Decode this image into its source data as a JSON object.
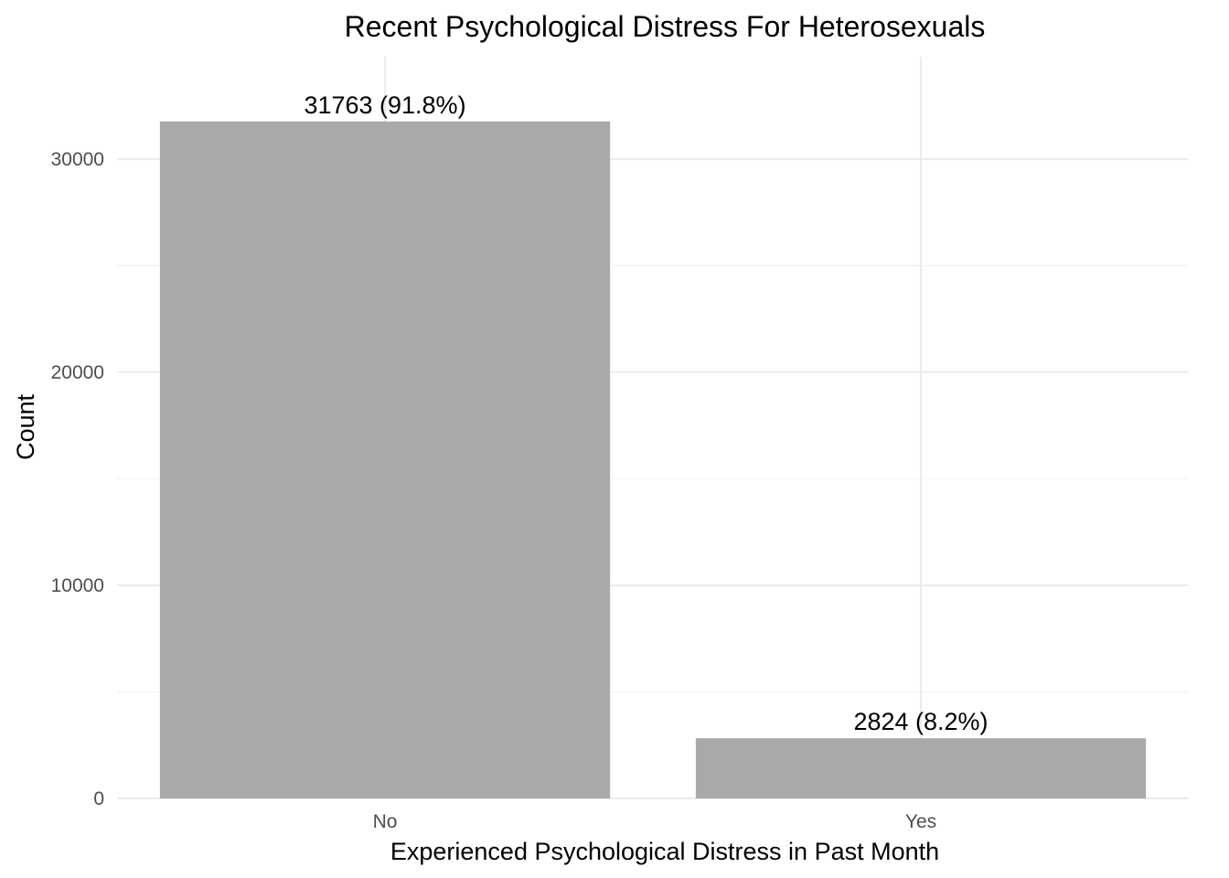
{
  "chart_data": {
    "type": "bar",
    "title": "Recent Psychological Distress For Heterosexuals",
    "xlabel": "Experienced Psychological Distress in Past Month",
    "ylabel": "Count",
    "categories": [
      "No",
      "Yes"
    ],
    "values": [
      31763,
      2824
    ],
    "data_labels": [
      "31763 (91.8%)",
      "2824 (8.2%)"
    ],
    "ylim": [
      0,
      34800
    ],
    "yticks": [
      0,
      10000,
      20000,
      30000
    ],
    "ytick_labels": [
      "0",
      "10000",
      "20000",
      "30000"
    ],
    "grid": true,
    "bar_color": "#a9a9a9",
    "legend": "none"
  }
}
